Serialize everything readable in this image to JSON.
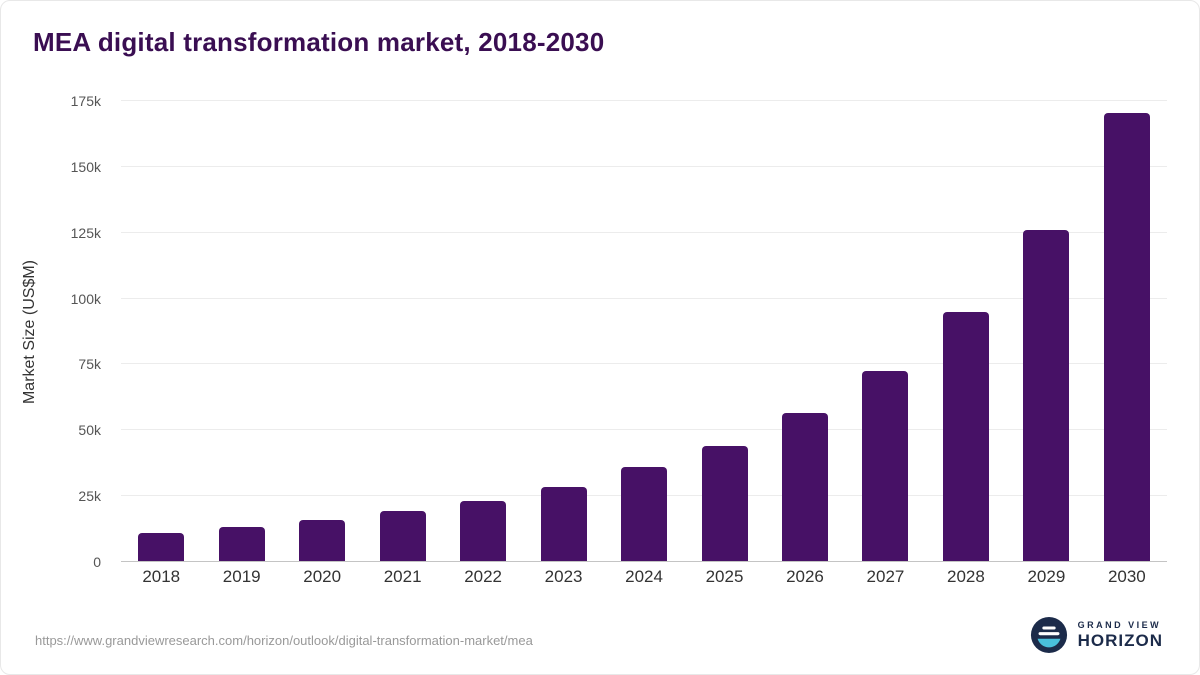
{
  "title": "MEA digital transformation market, 2018-2030",
  "footer": {
    "source_url": "https://www.grandviewresearch.com/horizon/outlook/digital-transformation-market/mea"
  },
  "brand": {
    "line1": "GRAND VIEW",
    "line2": "HORIZON",
    "icon": "horizon-logo-icon"
  },
  "colors": {
    "bar": "#471166",
    "title": "#3a0e52",
    "grid": "#ececec",
    "axis_line": "#c4c4c4",
    "tick_text": "#555555",
    "category_text": "#333333",
    "url_text": "#999999",
    "brand_navy": "#1c2b4a",
    "brand_teal": "#49c0dc"
  },
  "chart_data": {
    "type": "bar",
    "title": "MEA digital transformation market, 2018-2030",
    "xlabel": "",
    "ylabel": "Market Size (US$M)",
    "categories": [
      "2018",
      "2019",
      "2020",
      "2021",
      "2022",
      "2023",
      "2024",
      "2025",
      "2026",
      "2027",
      "2028",
      "2029",
      "2030"
    ],
    "values": [
      11200,
      13400,
      15900,
      19200,
      23300,
      28600,
      35900,
      44200,
      56500,
      72600,
      94800,
      126200,
      170500
    ],
    "ylim": [
      0,
      175000
    ],
    "ytick_values": [
      0,
      25000,
      50000,
      75000,
      100000,
      125000,
      150000,
      175000
    ],
    "ytick_labels": [
      "0",
      "25k",
      "50k",
      "75k",
      "100k",
      "125k",
      "150k",
      "175k"
    ],
    "grid": true,
    "legend_position": "none",
    "bar_color": "#471166"
  }
}
